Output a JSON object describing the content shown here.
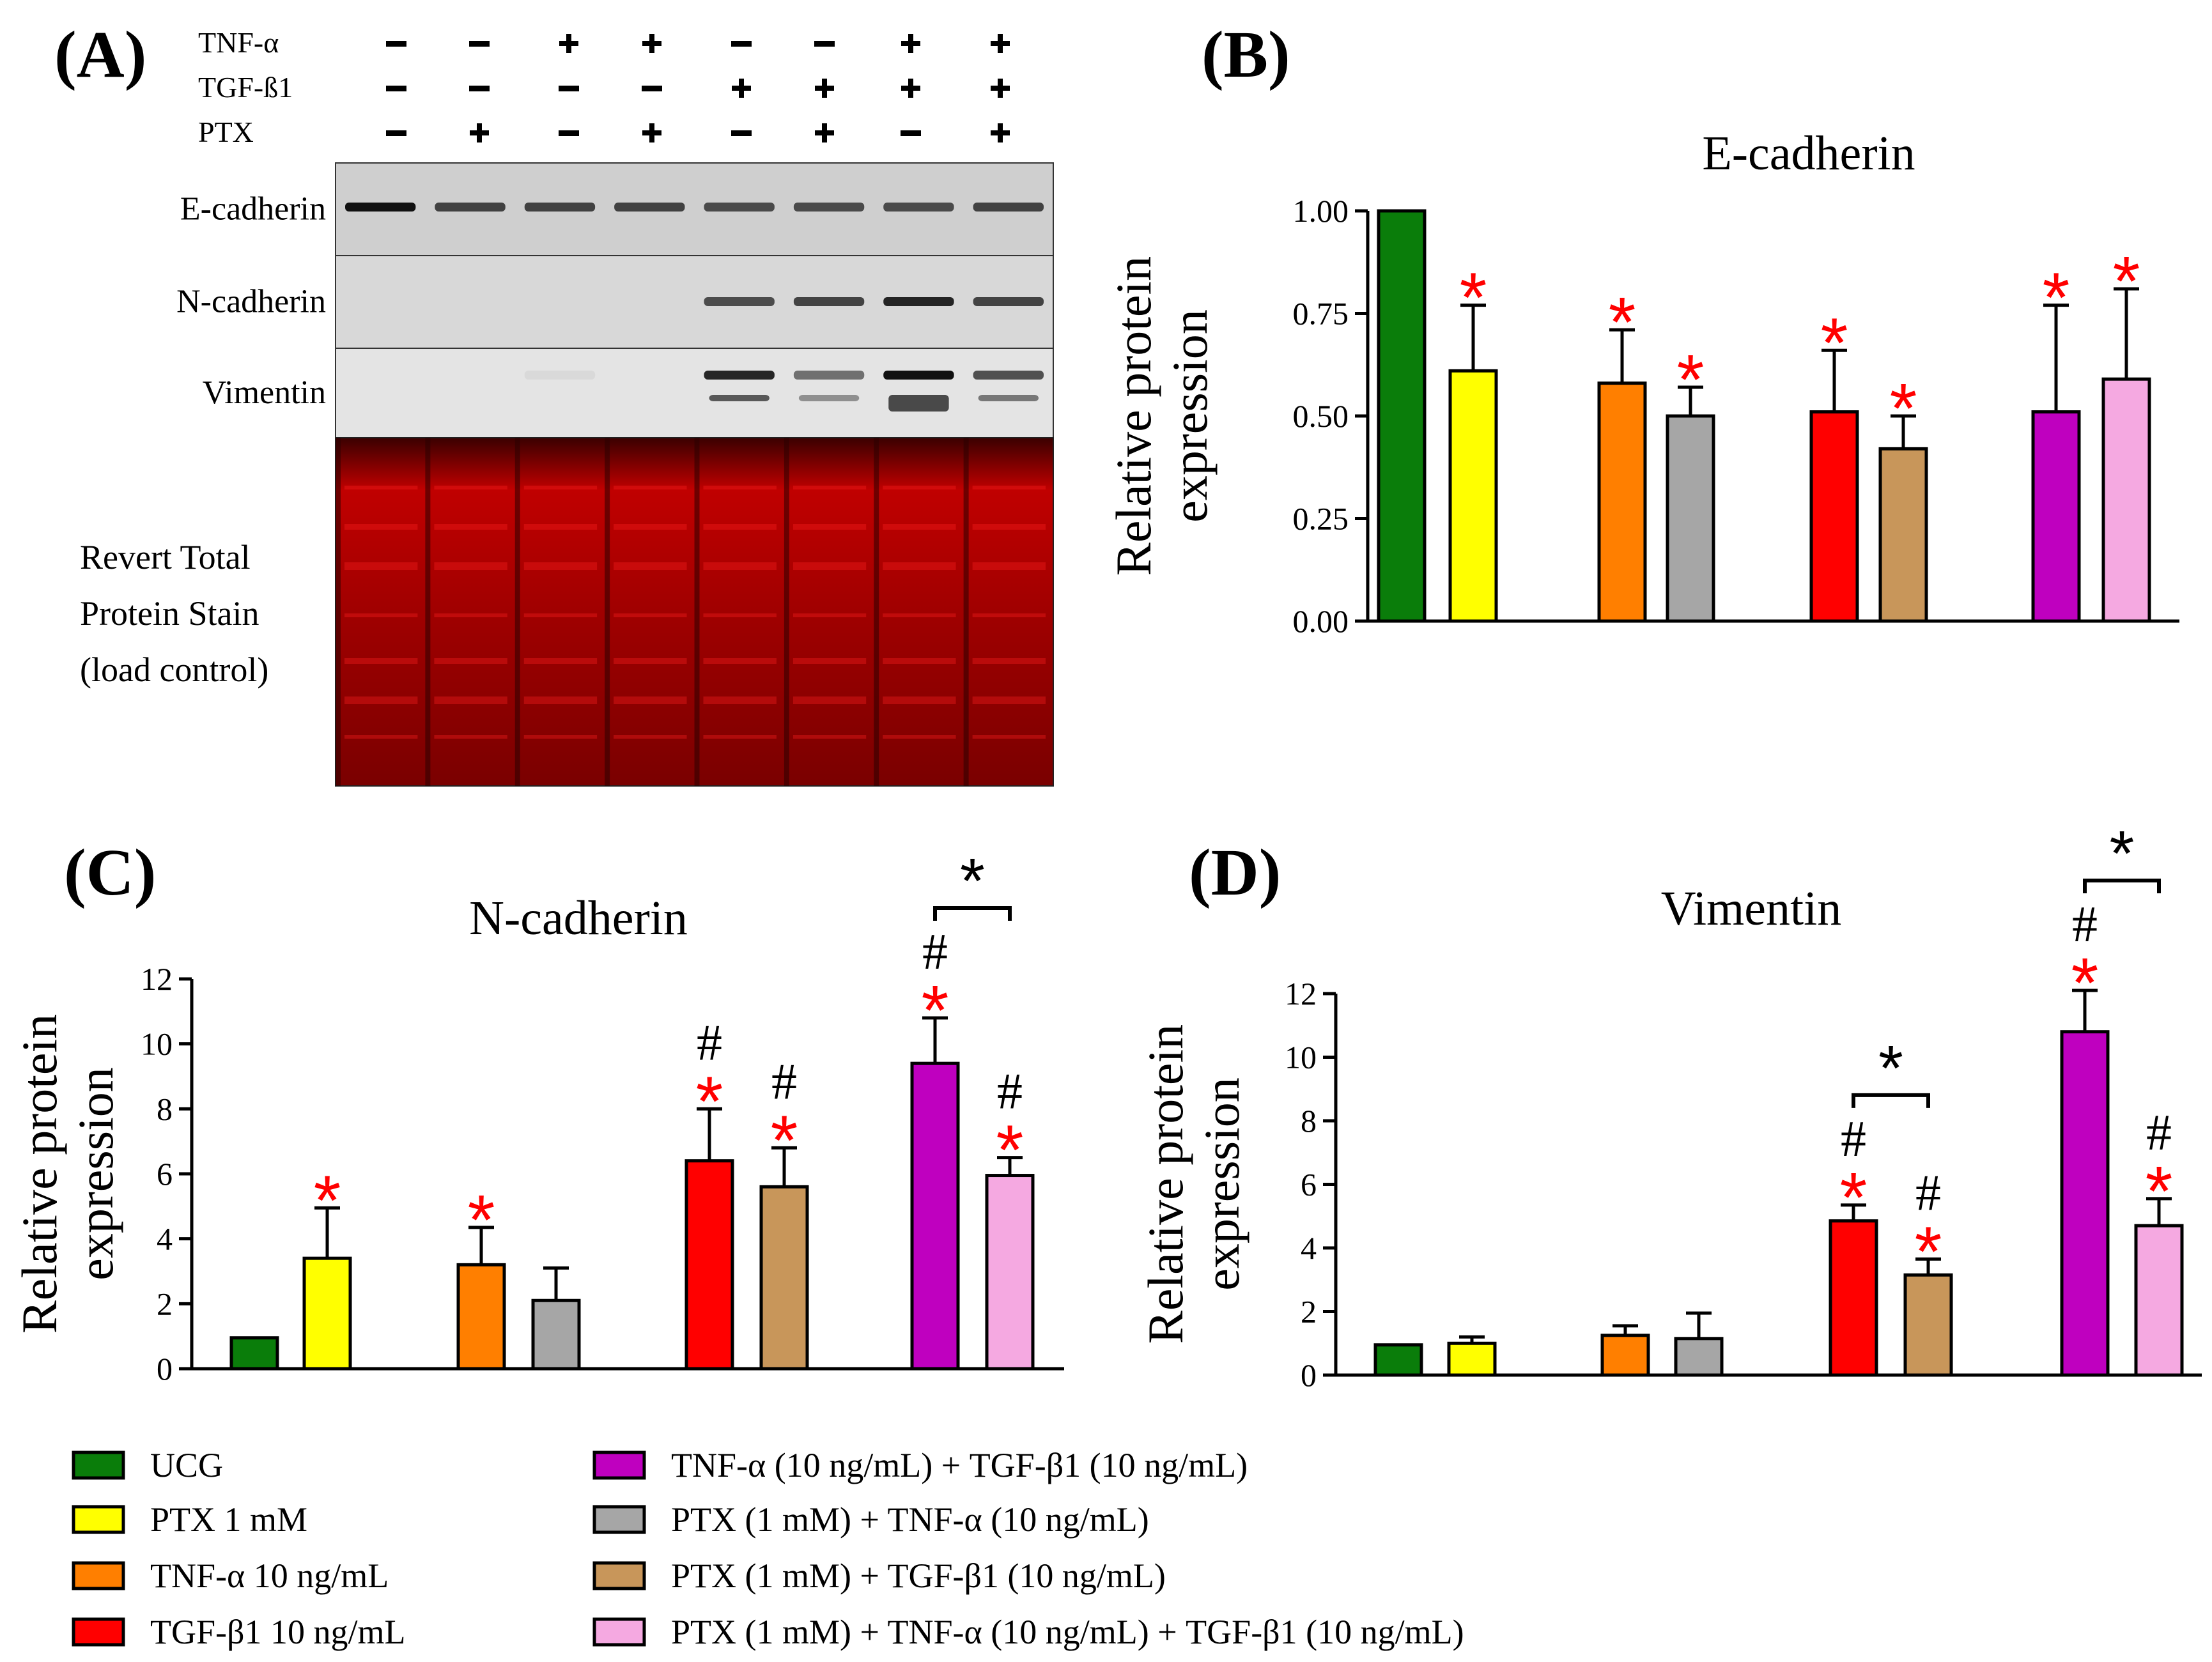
{
  "panels": {
    "a": "(A)",
    "b": "(B)",
    "c": "(C)",
    "d": "(D)"
  },
  "blot": {
    "treatment_rows": [
      {
        "label": "TNF-α",
        "signs": [
          "−",
          "−",
          "+",
          "+",
          "−",
          "−",
          "+",
          "+"
        ]
      },
      {
        "label": "TGF-ß1",
        "signs": [
          "−",
          "−",
          "−",
          "−",
          "+",
          "+",
          "+",
          "+"
        ]
      },
      {
        "label": "PTX",
        "signs": [
          "−",
          "+",
          "−",
          "+",
          "−",
          "+",
          "−",
          "+"
        ]
      }
    ],
    "band_labels": [
      "E-cadherin",
      "N-cadherin",
      "Vimentin"
    ],
    "stain_label": [
      "Revert Total",
      "Protein Stain",
      "(load control)"
    ]
  },
  "colors": {
    "green": "#0a7d0a",
    "yellow": "#ffff00",
    "orange": "#ff7f00",
    "gray": "#a6a6a6",
    "red": "#ff0000",
    "tan": "#c8965a",
    "purple": "#bf00bf",
    "pink": "#f5a9e1",
    "sig_red": "#ff0000",
    "ink": "#000000",
    "stain": "#b00000"
  },
  "chart_data": [
    {
      "panel": "B",
      "type": "bar",
      "title": "E-cadherin",
      "xlabel": "",
      "ylabel": [
        "Relative protein",
        "expression"
      ],
      "ylim": [
        0,
        1.0
      ],
      "yticks": [
        0,
        0.25,
        0.5,
        0.75,
        1.0
      ],
      "ytick_labels": [
        "0.00",
        "0.25",
        "0.50",
        "0.75",
        "1.00"
      ],
      "categories": [
        "UCG",
        "PTX 1 mM",
        "TNF-α 10 ng/mL",
        "PTX (1 mM) + TNF-α (10 ng/mL)",
        "TGF-β1 10 ng/mL",
        "PTX (1 mM) + TGF-β1 (10 ng/mL)",
        "TNF-α (10 ng/mL) + TGF-β1 (10 ng/mL)",
        "PTX (1 mM) + TNF-α (10 ng/mL) + TGF-β1 (10 ng/mL)"
      ],
      "values": [
        1.0,
        0.61,
        0.58,
        0.5,
        0.51,
        0.42,
        0.51,
        0.59
      ],
      "errors": [
        0.0,
        0.16,
        0.13,
        0.07,
        0.15,
        0.08,
        0.26,
        0.22
      ],
      "colors": [
        "green",
        "yellow",
        "orange",
        "gray",
        "red",
        "tan",
        "purple",
        "pink"
      ],
      "stars": [
        false,
        true,
        true,
        true,
        true,
        true,
        true,
        true
      ],
      "hashes": [
        false,
        false,
        false,
        false,
        false,
        false,
        false,
        false
      ],
      "brackets": []
    },
    {
      "panel": "C",
      "type": "bar",
      "title": "N-cadherin",
      "xlabel": "",
      "ylabel": [
        "Relative protein",
        "expression"
      ],
      "ylim": [
        0,
        12
      ],
      "yticks": [
        0,
        2,
        4,
        6,
        8,
        10,
        12
      ],
      "ytick_labels": [
        "0",
        "2",
        "4",
        "6",
        "8",
        "10",
        "12"
      ],
      "categories": [
        "UCG",
        "PTX 1 mM",
        "TNF-α 10 ng/mL",
        "PTX (1 mM) + TNF-α (10 ng/mL)",
        "TGF-β1 10 ng/mL",
        "PTX (1 mM) + TGF-β1 (10 ng/mL)",
        "TNF-α (10 ng/mL) + TGF-β1 (10 ng/mL)",
        "PTX (1 mM) + TNF-α (10 ng/mL) + TGF-β1 (10 ng/mL)"
      ],
      "values": [
        0.95,
        3.4,
        3.2,
        2.1,
        6.4,
        5.6,
        9.4,
        5.95
      ],
      "errors": [
        0.0,
        1.55,
        1.15,
        1.0,
        1.6,
        1.2,
        1.4,
        0.55
      ],
      "colors": [
        "green",
        "yellow",
        "orange",
        "gray",
        "red",
        "tan",
        "purple",
        "pink"
      ],
      "stars": [
        false,
        true,
        true,
        false,
        true,
        true,
        true,
        true
      ],
      "hashes": [
        false,
        false,
        false,
        false,
        true,
        true,
        true,
        true
      ],
      "brackets": [
        {
          "from": 6,
          "to": 7,
          "label": "*"
        }
      ]
    },
    {
      "panel": "D",
      "type": "bar",
      "title": "Vimentin",
      "xlabel": "",
      "ylabel": [
        "Relative protein",
        "expression"
      ],
      "ylim": [
        0,
        12
      ],
      "yticks": [
        0,
        2,
        4,
        6,
        8,
        10,
        12
      ],
      "ytick_labels": [
        "0",
        "2",
        "4",
        "6",
        "8",
        "10",
        "12"
      ],
      "categories": [
        "UCG",
        "PTX 1 mM",
        "TNF-α 10 ng/mL",
        "PTX (1 mM) + TNF-α (10 ng/mL)",
        "TGF-β1 10 ng/mL",
        "PTX (1 mM) + TGF-β1 (10 ng/mL)",
        "TNF-α (10 ng/mL) + TGF-β1 (10 ng/mL)",
        "PTX (1 mM) + TNF-α (10 ng/mL) + TGF-β1 (10 ng/mL)"
      ],
      "values": [
        0.95,
        1.0,
        1.25,
        1.15,
        4.85,
        3.15,
        10.8,
        4.7
      ],
      "errors": [
        0.0,
        0.2,
        0.3,
        0.8,
        0.5,
        0.5,
        1.3,
        0.85
      ],
      "colors": [
        "green",
        "yellow",
        "orange",
        "gray",
        "red",
        "tan",
        "purple",
        "pink"
      ],
      "stars": [
        false,
        false,
        false,
        false,
        true,
        true,
        true,
        true
      ],
      "hashes": [
        false,
        false,
        false,
        false,
        true,
        true,
        true,
        true
      ],
      "brackets": [
        {
          "from": 4,
          "to": 5,
          "label": "*"
        },
        {
          "from": 6,
          "to": 7,
          "label": "*"
        }
      ]
    }
  ],
  "legend": [
    {
      "label": "UCG",
      "color": "green"
    },
    {
      "label": "PTX 1 mM",
      "color": "yellow"
    },
    {
      "label": "TNF-α 10 ng/mL",
      "color": "orange"
    },
    {
      "label": "TGF-β1 10 ng/mL",
      "color": "red"
    },
    {
      "label": "TNF-α (10 ng/mL) + TGF-β1 (10 ng/mL)",
      "color": "purple"
    },
    {
      "label": "PTX (1 mM) + TNF-α (10 ng/mL)",
      "color": "gray"
    },
    {
      "label": "PTX (1 mM) + TGF-β1 (10 ng/mL)",
      "color": "tan"
    },
    {
      "label": "PTX (1 mM) + TNF-α (10 ng/mL) + TGF-β1 (10 ng/mL)",
      "color": "pink"
    }
  ]
}
